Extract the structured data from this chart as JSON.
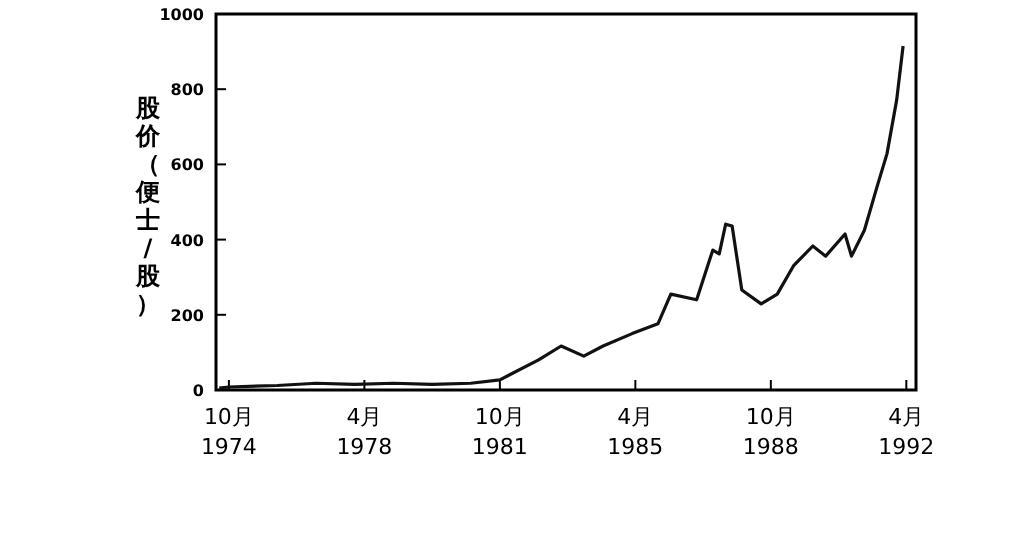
{
  "chart_data": {
    "type": "line",
    "ylabel": "股价（便士/股）",
    "x": [
      "1974-07",
      "1974-10",
      "1976-01",
      "1977-01",
      "1978-01",
      "1979-01",
      "1980-01",
      "1981-01",
      "1981-10",
      "1982-10",
      "1983-05",
      "1983-12",
      "1984-06",
      "1985-03",
      "1985-11",
      "1986-03",
      "1986-11",
      "1987-04",
      "1987-06",
      "1987-08",
      "1987-10",
      "1988-01",
      "1988-07",
      "1988-12",
      "1989-05",
      "1989-11",
      "1990-03",
      "1990-09",
      "1990-11",
      "1991-03",
      "1991-07",
      "1991-10",
      "1992-01",
      "1992-03"
    ],
    "series": [
      {
        "color": "#111111",
        "values": [
          5,
          8,
          12,
          18,
          15,
          18,
          15,
          18,
          27,
          80,
          117,
          90,
          117,
          150,
          176,
          255,
          240,
          372,
          362,
          441,
          436,
          266,
          229,
          255,
          330,
          383,
          356,
          415,
          356,
          425,
          543,
          628,
          771,
          915
        ]
      }
    ],
    "xlim": [
      "1974-06",
      "1992-07"
    ],
    "ylim": [
      0,
      1000
    ],
    "xticks": [
      {
        "value": "1974-10",
        "label": "10月\n1974"
      },
      {
        "value": "1978-04",
        "label": "4月\n1978"
      },
      {
        "value": "1981-10",
        "label": "10月\n1981"
      },
      {
        "value": "1985-04",
        "label": "4月\n1985"
      },
      {
        "value": "1988-10",
        "label": "10月\n1988"
      },
      {
        "value": "1992-04",
        "label": "4月\n1992"
      }
    ],
    "yticks": [
      0,
      200,
      400,
      600,
      800,
      1000
    ],
    "grid": false,
    "marker": "none",
    "line_style": "solid"
  }
}
